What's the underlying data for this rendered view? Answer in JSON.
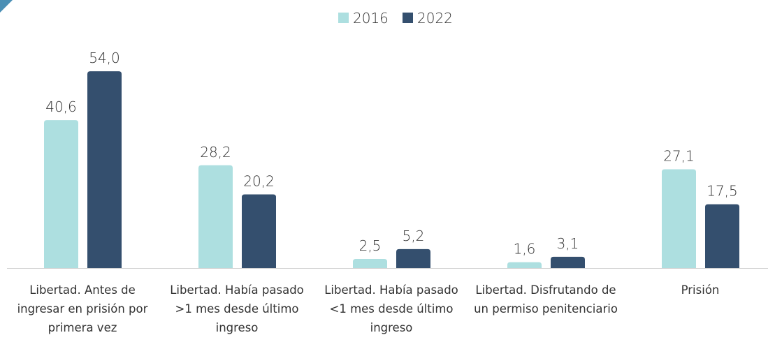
{
  "chart_data": {
    "type": "bar",
    "categories": [
      "Libertad. Antes de ingresar en prisión por primera vez",
      "Libertad. Había pasado >1 mes desde último ingreso",
      "Libertad. Había pasado <1 mes desde último ingreso",
      "Libertad. Disfrutando de un permiso penitenciario",
      "Prisión"
    ],
    "series": [
      {
        "name": "2016",
        "color": "#addfe0",
        "values": [
          40.6,
          28.2,
          2.5,
          1.6,
          27.1
        ],
        "value_labels": [
          "40,6",
          "28,2",
          "2,5",
          "1,6",
          "27,1"
        ]
      },
      {
        "name": "2022",
        "color": "#344f6e",
        "values": [
          54.0,
          20.2,
          5.2,
          3.1,
          17.5
        ],
        "value_labels": [
          "54,0",
          "20,2",
          "5,2",
          "3,1",
          "17,5"
        ]
      }
    ],
    "legend": "top"
  }
}
